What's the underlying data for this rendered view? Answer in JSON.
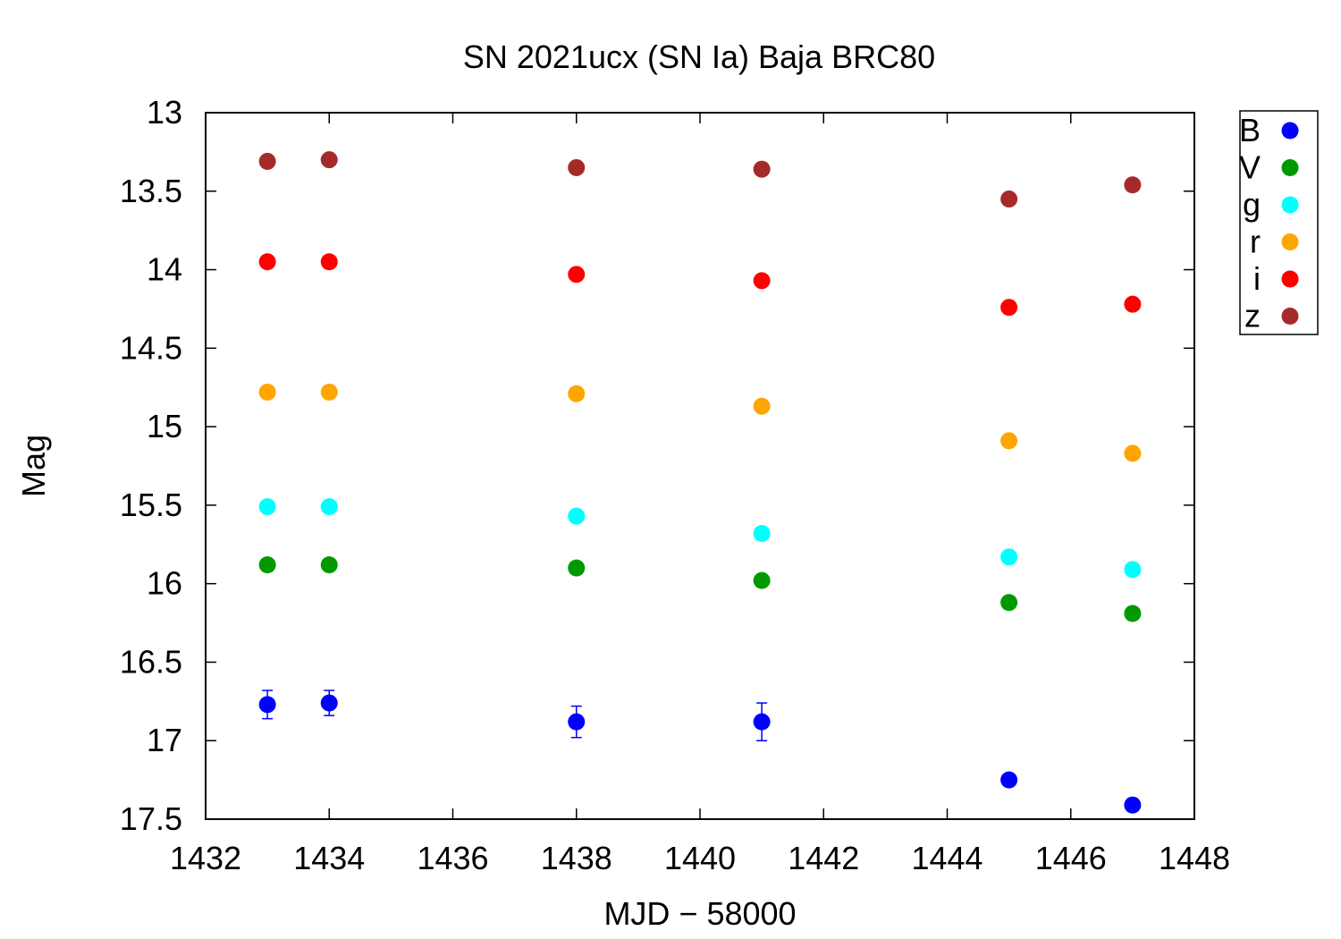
{
  "chart_data": {
    "type": "scatter",
    "title": "SN 2021ucx (SN Ia) Baja BRC80",
    "xlabel": "MJD − 58000",
    "ylabel": "Mag",
    "xlim": [
      1432,
      1448
    ],
    "ylim": [
      13,
      17.5
    ],
    "y_inverted": true,
    "x_ticks": [
      "1432",
      "1434",
      "1436",
      "1438",
      "1440",
      "1442",
      "1444",
      "1446",
      "1448"
    ],
    "y_ticks": [
      "13",
      "13.5",
      "14",
      "14.5",
      "15",
      "15.5",
      "16",
      "16.5",
      "17",
      "17.5"
    ],
    "legend_position": "outside-top-right",
    "grid": false,
    "series": [
      {
        "name": "B",
        "color": "#0000ff",
        "x": [
          1433.0,
          1434.0,
          1438.0,
          1441.0,
          1445.0,
          1447.0
        ],
        "y": [
          16.77,
          16.76,
          16.88,
          16.88,
          17.25,
          17.41
        ],
        "err": [
          0.09,
          0.08,
          0.1,
          0.12,
          0.03,
          0.04
        ]
      },
      {
        "name": "V",
        "color": "#009900",
        "x": [
          1433.0,
          1434.0,
          1438.0,
          1441.0,
          1445.0,
          1447.0
        ],
        "y": [
          15.88,
          15.88,
          15.9,
          15.98,
          16.12,
          16.19
        ],
        "err": [
          0.02,
          0.02,
          0.02,
          0.02,
          0.02,
          0.02
        ]
      },
      {
        "name": "g",
        "color": "#00ffff",
        "x": [
          1433.0,
          1434.0,
          1438.0,
          1441.0,
          1445.0,
          1447.0
        ],
        "y": [
          15.51,
          15.51,
          15.57,
          15.68,
          15.83,
          15.91
        ],
        "err": [
          0.02,
          0.02,
          0.02,
          0.02,
          0.02,
          0.02
        ]
      },
      {
        "name": "r",
        "color": "#ffa500",
        "x": [
          1433.0,
          1434.0,
          1438.0,
          1441.0,
          1445.0,
          1447.0
        ],
        "y": [
          14.78,
          14.78,
          14.79,
          14.87,
          15.09,
          15.17
        ],
        "err": [
          0.02,
          0.02,
          0.02,
          0.02,
          0.02,
          0.02
        ]
      },
      {
        "name": "i",
        "color": "#ff0000",
        "x": [
          1433.0,
          1434.0,
          1438.0,
          1441.0,
          1445.0,
          1447.0
        ],
        "y": [
          13.95,
          13.95,
          14.03,
          14.07,
          14.24,
          14.22
        ],
        "err": [
          0.02,
          0.02,
          0.02,
          0.02,
          0.02,
          0.02
        ]
      },
      {
        "name": "z",
        "color": "#a52a2a",
        "x": [
          1433.0,
          1434.0,
          1438.0,
          1441.0,
          1445.0,
          1447.0
        ],
        "y": [
          13.31,
          13.3,
          13.35,
          13.36,
          13.55,
          13.46
        ],
        "err": [
          0.02,
          0.02,
          0.03,
          0.04,
          0.02,
          0.04
        ]
      }
    ]
  }
}
